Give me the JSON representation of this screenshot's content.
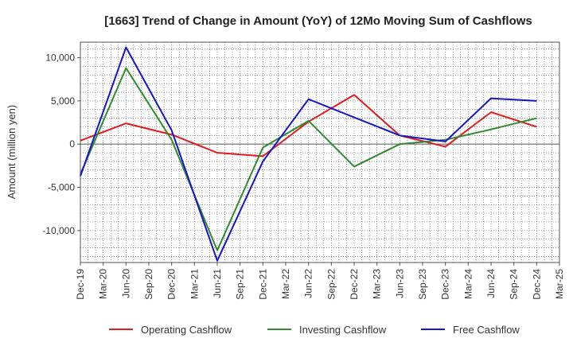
{
  "chart_data": {
    "type": "line",
    "title": "[1663]  Trend of Change in Amount (YoY) of 12Mo Moving Sum of Cashflows",
    "xlabel": "",
    "ylabel": "Amount (million yen)",
    "ylim": [
      -13700,
      11800
    ],
    "yticks": [
      10000,
      5000,
      0,
      -5000,
      -10000
    ],
    "ytick_labels": [
      "10,000",
      "5,000",
      "0",
      "-5,000",
      "-10,000"
    ],
    "categories": [
      "Dec-19",
      "Mar-20",
      "Jun-20",
      "Sep-20",
      "Dec-20",
      "Mar-21",
      "Jun-21",
      "Sep-21",
      "Dec-21",
      "Mar-22",
      "Jun-22",
      "Sep-22",
      "Dec-22",
      "Mar-23",
      "Jun-23",
      "Sep-23",
      "Dec-23",
      "Mar-24",
      "Jun-24",
      "Sep-24",
      "Dec-24",
      "Mar-25"
    ],
    "grid": true,
    "legend_position": "bottom",
    "series": [
      {
        "name": "Operating Cashflow",
        "color": "#e31a1c",
        "values": [
          400,
          null,
          2400,
          null,
          1100,
          null,
          -1000,
          null,
          -1400,
          null,
          2600,
          null,
          5700,
          null,
          1000,
          null,
          -300,
          null,
          3700,
          null,
          2000,
          null
        ]
      },
      {
        "name": "Investing Cashflow",
        "color": "#2e8b2e",
        "values": [
          -3500,
          null,
          8800,
          null,
          500,
          null,
          -12300,
          null,
          -400,
          null,
          2700,
          null,
          -2600,
          null,
          0,
          null,
          500,
          null,
          1700,
          null,
          3000,
          null
        ]
      },
      {
        "name": "Free Cashflow",
        "color": "#1515d0",
        "values": [
          -3700,
          null,
          11200,
          null,
          1600,
          null,
          -13500,
          null,
          -2000,
          null,
          5200,
          null,
          3100,
          null,
          1000,
          null,
          300,
          null,
          5300,
          null,
          5000,
          null
        ]
      }
    ]
  }
}
